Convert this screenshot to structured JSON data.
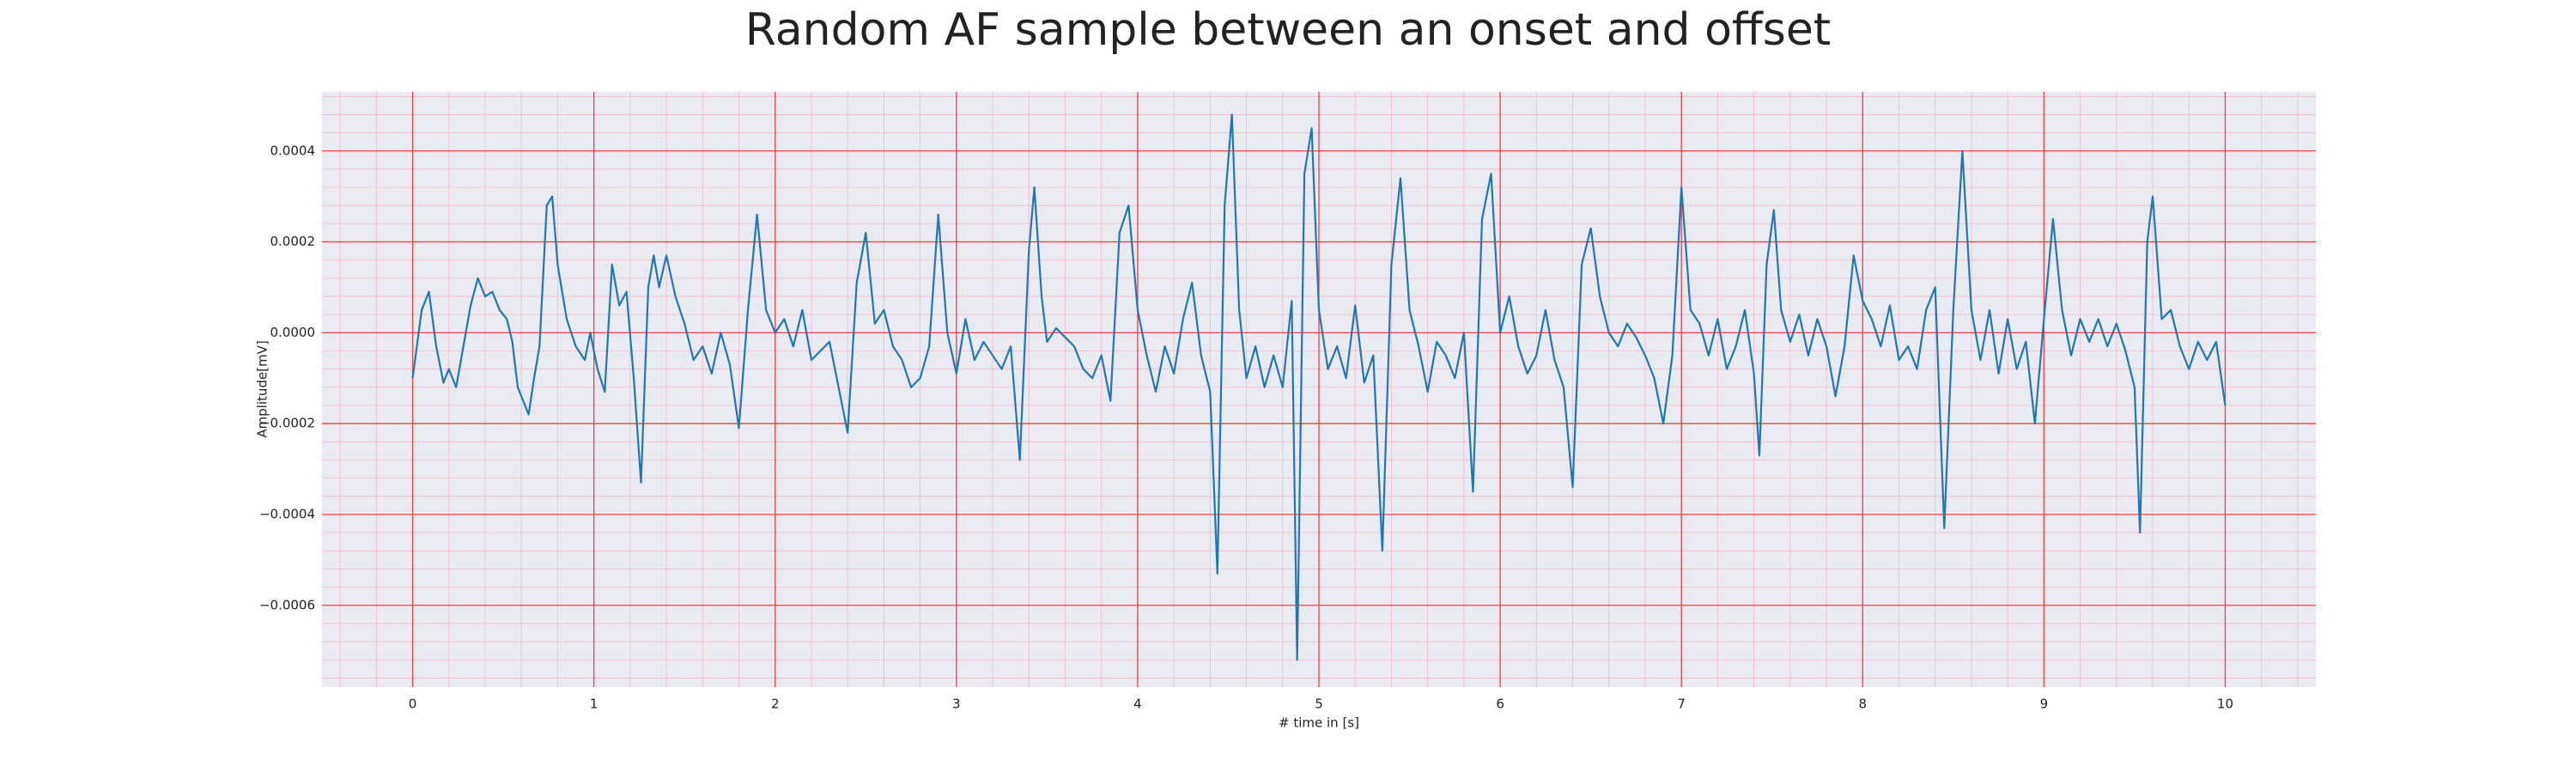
{
  "chart_data": {
    "type": "line",
    "title": "Random AF sample between an onset and offset",
    "xlabel": "# time in [s]",
    "ylabel": "Amplitude[mV]",
    "x": [
      0,
      0.05,
      0.09,
      0.13,
      0.17,
      0.2,
      0.24,
      0.28,
      0.32,
      0.36,
      0.4,
      0.44,
      0.48,
      0.52,
      0.55,
      0.58,
      0.61,
      0.64,
      0.67,
      0.7,
      0.74,
      0.77,
      0.8,
      0.85,
      0.9,
      0.95,
      0.98,
      1.02,
      1.06,
      1.1,
      1.14,
      1.18,
      1.22,
      1.26,
      1.3,
      1.33,
      1.36,
      1.4,
      1.45,
      1.5,
      1.55,
      1.6,
      1.65,
      1.7,
      1.75,
      1.8,
      1.85,
      1.9,
      1.95,
      2.0,
      2.05,
      2.1,
      2.15,
      2.2,
      2.25,
      2.3,
      2.35,
      2.4,
      2.45,
      2.5,
      2.55,
      2.6,
      2.65,
      2.7,
      2.75,
      2.8,
      2.85,
      2.9,
      2.95,
      3.0,
      3.05,
      3.1,
      3.15,
      3.2,
      3.25,
      3.3,
      3.35,
      3.4,
      3.43,
      3.47,
      3.5,
      3.55,
      3.6,
      3.65,
      3.7,
      3.75,
      3.8,
      3.85,
      3.9,
      3.95,
      4.0,
      4.05,
      4.1,
      4.15,
      4.2,
      4.25,
      4.3,
      4.35,
      4.4,
      4.44,
      4.48,
      4.52,
      4.56,
      4.6,
      4.65,
      4.7,
      4.75,
      4.8,
      4.85,
      4.88,
      4.92,
      4.96,
      5.0,
      5.05,
      5.1,
      5.15,
      5.2,
      5.25,
      5.3,
      5.35,
      5.4,
      5.45,
      5.5,
      5.55,
      5.6,
      5.65,
      5.7,
      5.75,
      5.8,
      5.85,
      5.9,
      5.95,
      6.0,
      6.05,
      6.1,
      6.15,
      6.2,
      6.25,
      6.3,
      6.35,
      6.4,
      6.45,
      6.5,
      6.55,
      6.6,
      6.65,
      6.7,
      6.75,
      6.8,
      6.85,
      6.9,
      6.95,
      7.0,
      7.05,
      7.1,
      7.15,
      7.2,
      7.25,
      7.3,
      7.35,
      7.4,
      7.43,
      7.47,
      7.51,
      7.55,
      7.6,
      7.65,
      7.7,
      7.75,
      7.8,
      7.85,
      7.9,
      7.95,
      8.0,
      8.05,
      8.1,
      8.15,
      8.2,
      8.25,
      8.3,
      8.35,
      8.4,
      8.45,
      8.5,
      8.55,
      8.6,
      8.65,
      8.7,
      8.75,
      8.8,
      8.85,
      8.9,
      8.95,
      9.0,
      9.05,
      9.1,
      9.15,
      9.2,
      9.25,
      9.3,
      9.35,
      9.4,
      9.45,
      9.5,
      9.53,
      9.57,
      9.6,
      9.65,
      9.7,
      9.75,
      9.8,
      9.85,
      9.9,
      9.95,
      10.0
    ],
    "series": [
      {
        "color": "#1f77b4",
        "values": [
          -0.0001,
          5e-05,
          9e-05,
          -3e-05,
          -0.00011,
          -8e-05,
          -0.00012,
          -3e-05,
          6e-05,
          0.00012,
          8e-05,
          9e-05,
          5e-05,
          3e-05,
          -2e-05,
          -0.00012,
          -0.00015,
          -0.00018,
          -0.0001,
          -3e-05,
          0.00028,
          0.0003,
          0.00015,
          3e-05,
          -3e-05,
          -6e-05,
          0,
          -8e-05,
          -0.00013,
          0.00015,
          6e-05,
          9e-05,
          -0.0001,
          -0.00033,
          0.0001,
          0.00017,
          0.0001,
          0.00017,
          8e-05,
          2e-05,
          -6e-05,
          -3e-05,
          -9e-05,
          0,
          -7e-05,
          -0.00021,
          5e-05,
          0.00026,
          5e-05,
          0,
          3e-05,
          -3e-05,
          5e-05,
          -6e-05,
          -4e-05,
          -2e-05,
          -0.00012,
          -0.00022,
          0.00011,
          0.00022,
          2e-05,
          5e-05,
          -3e-05,
          -6e-05,
          -0.00012,
          -0.0001,
          -3e-05,
          0.00026,
          0,
          -9e-05,
          3e-05,
          -6e-05,
          -2e-05,
          -5e-05,
          -8e-05,
          -3e-05,
          -0.00028,
          0.00018,
          0.00032,
          8e-05,
          -2e-05,
          1e-05,
          -1e-05,
          -3e-05,
          -8e-05,
          -0.0001,
          -5e-05,
          -0.00015,
          0.00022,
          0.00028,
          5e-05,
          -5e-05,
          -0.00013,
          -3e-05,
          -9e-05,
          3e-05,
          0.00011,
          -5e-05,
          -0.00013,
          -0.00053,
          0.00028,
          0.00048,
          5e-05,
          -0.0001,
          -3e-05,
          -0.00012,
          -5e-05,
          -0.00012,
          7e-05,
          -0.00072,
          0.00035,
          0.00045,
          5e-05,
          -8e-05,
          -3e-05,
          -0.0001,
          6e-05,
          -0.00011,
          -5e-05,
          -0.00048,
          0.00015,
          0.00034,
          5e-05,
          -3e-05,
          -0.00013,
          -2e-05,
          -5e-05,
          -0.0001,
          0,
          -0.00035,
          0.00025,
          0.00035,
          0,
          8e-05,
          -3e-05,
          -9e-05,
          -5e-05,
          5e-05,
          -6e-05,
          -0.00012,
          -0.00034,
          0.00015,
          0.00023,
          8e-05,
          0,
          -3e-05,
          2e-05,
          -1e-05,
          -5e-05,
          -0.0001,
          -0.0002,
          -5e-05,
          0.00032,
          5e-05,
          2e-05,
          -5e-05,
          3e-05,
          -8e-05,
          -3e-05,
          5e-05,
          -9e-05,
          -0.00027,
          0.00015,
          0.00027,
          5e-05,
          -2e-05,
          4e-05,
          -5e-05,
          3e-05,
          -3e-05,
          -0.00014,
          -3e-05,
          0.00017,
          7e-05,
          3e-05,
          -3e-05,
          6e-05,
          -6e-05,
          -3e-05,
          -8e-05,
          5e-05,
          0.0001,
          -0.00043,
          5e-05,
          0.0004,
          5e-05,
          -6e-05,
          5e-05,
          -9e-05,
          3e-05,
          -8e-05,
          -2e-05,
          -0.0002,
          3e-05,
          0.00025,
          5e-05,
          -5e-05,
          3e-05,
          -2e-05,
          3e-05,
          -3e-05,
          2e-05,
          -4e-05,
          -0.00012,
          -0.00044,
          0.0002,
          0.0003,
          3e-05,
          5e-05,
          -3e-05,
          -8e-05,
          -2e-05,
          -6e-05,
          -2e-05,
          -0.00016
        ]
      }
    ],
    "xlim": [
      -0.5,
      10.5
    ],
    "ylim": [
      -0.00078,
      0.00053
    ],
    "xticks": [
      0,
      1,
      2,
      3,
      4,
      5,
      6,
      7,
      8,
      9,
      10
    ],
    "yticks": [
      {
        "value": -0.0006,
        "label": "−0.0006"
      },
      {
        "value": -0.0004,
        "label": "−0.0004"
      },
      {
        "value": -0.0002,
        "label": "−0.0002"
      },
      {
        "value": 0,
        "label": "0.0000"
      },
      {
        "value": 0.0002,
        "label": "0.0002"
      },
      {
        "value": 0.0004,
        "label": "0.0004"
      }
    ],
    "grid": true
  }
}
